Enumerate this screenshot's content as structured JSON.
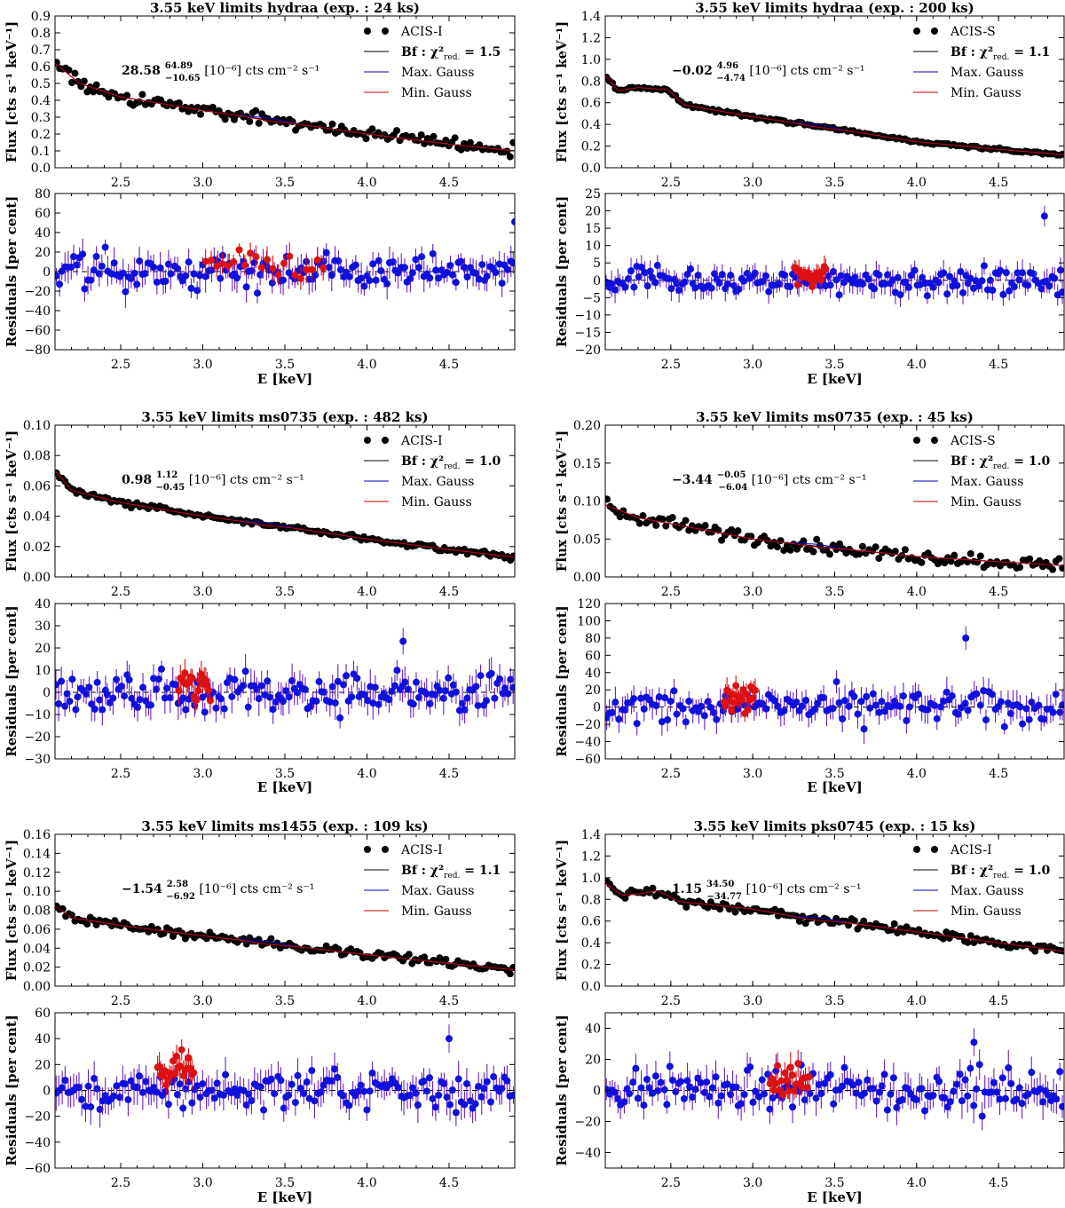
{
  "figure": {
    "flux_ylabel": "Flux [cts s⁻¹ keV⁻¹]",
    "resid_ylabel": "Residuals [per cent]",
    "xlabel": "E [keV]"
  },
  "legend": {
    "bf_prefix": "Bf : χ²",
    "bf_sub": "red.",
    "max_label": "Max. Gauss",
    "min_label": "Min. Gauss"
  },
  "colors": {
    "data": "#000000",
    "bestfit": "#000000",
    "max_gauss": "#0000cc",
    "min_gauss": "#cc0000",
    "resid_point": "#1010dd",
    "resid_err": "#6a1fc8",
    "line_point": "#dd1111"
  },
  "chart_data": [
    {
      "type": "scatter",
      "title": "3.55 keV limits hydraa (exp. : 24 ks)",
      "instrument": "ACIS-I",
      "chi2_red": "1.5",
      "flux_value": "28.58",
      "flux_upper": "64.89",
      "flux_lower": "−10.65",
      "flux_unit": "[10⁻⁶] cts cm⁻² s⁻¹",
      "xlim": [
        2.1,
        4.9
      ],
      "xticks": [
        "2.5",
        "3.0",
        "3.5",
        "4.0",
        "4.5"
      ],
      "flux_ylim": [
        0.0,
        0.9
      ],
      "flux_yticks": [
        "0.0",
        "0.1",
        "0.2",
        "0.3",
        "0.4",
        "0.5",
        "0.6",
        "0.7",
        "0.8",
        "0.9"
      ],
      "resid_ylim": [
        -80,
        80
      ],
      "resid_yticks": [
        "−80",
        "−60",
        "−40",
        "−20",
        "0",
        "20",
        "40",
        "60",
        "80"
      ],
      "model_points": [
        [
          2.1,
          0.62
        ],
        [
          2.25,
          0.5
        ],
        [
          2.5,
          0.42
        ],
        [
          3.0,
          0.34
        ],
        [
          3.5,
          0.27
        ],
        [
          4.0,
          0.2
        ],
        [
          4.5,
          0.14
        ],
        [
          4.9,
          0.1
        ]
      ],
      "flux_scatter": 0.035,
      "flux_err": 0.035,
      "n_points": 150,
      "resid_scatter": 14,
      "resid_err": 13,
      "line_range": [
        3.0,
        3.75
      ],
      "line_offset": 10,
      "outlier": [
        4.9,
        51
      ]
    },
    {
      "type": "scatter",
      "title": "3.55 keV limits hydraa (exp. : 200 ks)",
      "instrument": "ACIS-S",
      "chi2_red": "1.1",
      "flux_value": "−0.02",
      "flux_upper": "4.96",
      "flux_lower": "−4.74",
      "flux_unit": "[10⁻⁶] cts cm⁻² s⁻¹",
      "xlim": [
        2.1,
        4.9
      ],
      "xticks": [
        "2.5",
        "3.0",
        "3.5",
        "4.0",
        "4.5"
      ],
      "flux_ylim": [
        0.0,
        1.4
      ],
      "flux_yticks": [
        "0.0",
        "0.2",
        "0.4",
        "0.6",
        "0.8",
        "1.0",
        "1.2",
        "1.4"
      ],
      "resid_ylim": [
        -20,
        25
      ],
      "resid_yticks": [
        "−20",
        "−15",
        "−10",
        "−5",
        "0",
        "5",
        "10",
        "15",
        "20",
        "25"
      ],
      "model_points": [
        [
          2.1,
          0.85
        ],
        [
          2.18,
          0.71
        ],
        [
          2.3,
          0.74
        ],
        [
          2.48,
          0.72
        ],
        [
          2.58,
          0.58
        ],
        [
          3.0,
          0.47
        ],
        [
          3.5,
          0.36
        ],
        [
          4.0,
          0.24
        ],
        [
          4.5,
          0.17
        ],
        [
          4.9,
          0.12
        ]
      ],
      "flux_scatter": 0.012,
      "flux_err": 0.01,
      "n_points": 160,
      "resid_scatter": 3,
      "resid_err": 3,
      "line_range": [
        3.25,
        3.45
      ],
      "line_offset": 2,
      "outlier": [
        4.78,
        18.5
      ]
    },
    {
      "type": "scatter",
      "title": "3.55 keV limits ms0735 (exp. : 482 ks)",
      "instrument": "ACIS-I",
      "chi2_red": "1.0",
      "flux_value": "0.98",
      "flux_upper": "1.12",
      "flux_lower": "−0.45",
      "flux_unit": "[10⁻⁶] cts cm⁻² s⁻¹",
      "xlim": [
        2.1,
        4.9
      ],
      "xticks": [
        "2.5",
        "3.0",
        "3.5",
        "4.0",
        "4.5"
      ],
      "flux_ylim": [
        0.0,
        0.1
      ],
      "flux_yticks": [
        "0.00",
        "0.02",
        "0.04",
        "0.06",
        "0.08",
        "0.10"
      ],
      "resid_ylim": [
        -30,
        40
      ],
      "resid_yticks": [
        "−30",
        "−20",
        "−10",
        "0",
        "10",
        "20",
        "30",
        "40"
      ],
      "model_points": [
        [
          2.1,
          0.07
        ],
        [
          2.2,
          0.057
        ],
        [
          2.5,
          0.049
        ],
        [
          3.0,
          0.04
        ],
        [
          3.5,
          0.033
        ],
        [
          4.0,
          0.025
        ],
        [
          4.5,
          0.018
        ],
        [
          4.9,
          0.013
        ]
      ],
      "flux_scatter": 0.0015,
      "flux_err": 0.0015,
      "n_points": 160,
      "resid_scatter": 7,
      "resid_err": 6,
      "line_range": [
        2.85,
        3.05
      ],
      "line_offset": 4,
      "outlier": [
        4.22,
        23
      ]
    },
    {
      "type": "scatter",
      "title": "3.55 keV limits ms0735 (exp. : 45 ks)",
      "instrument": "ACIS-S",
      "chi2_red": "1.0",
      "flux_value": "−3.44",
      "flux_upper": "−0.05",
      "flux_lower": "−6.04",
      "flux_unit": "[10⁻⁶] cts cm⁻² s⁻¹",
      "xlim": [
        2.1,
        4.9
      ],
      "xticks": [
        "2.5",
        "3.0",
        "3.5",
        "4.0",
        "4.5"
      ],
      "flux_ylim": [
        0.0,
        0.2
      ],
      "flux_yticks": [
        "0.00",
        "0.05",
        "0.10",
        "0.15",
        "0.20"
      ],
      "resid_ylim": [
        -60,
        120
      ],
      "resid_yticks": [
        "−60",
        "−40",
        "−20",
        "0",
        "20",
        "40",
        "60",
        "80",
        "100",
        "120"
      ],
      "model_points": [
        [
          2.1,
          0.095
        ],
        [
          2.3,
          0.078
        ],
        [
          2.5,
          0.07
        ],
        [
          2.8,
          0.058
        ],
        [
          3.0,
          0.05
        ],
        [
          3.5,
          0.038
        ],
        [
          4.0,
          0.027
        ],
        [
          4.5,
          0.02
        ],
        [
          4.9,
          0.015
        ]
      ],
      "flux_scatter": 0.008,
      "flux_err": 0.008,
      "n_points": 140,
      "resid_scatter": 16,
      "resid_err": 14,
      "line_range": [
        2.82,
        3.02
      ],
      "line_offset": 10,
      "outlier": [
        4.3,
        80
      ]
    },
    {
      "type": "scatter",
      "title": "3.55 keV limits ms1455 (exp. : 109 ks)",
      "instrument": "ACIS-I",
      "chi2_red": "1.1",
      "flux_value": "−1.54",
      "flux_upper": "2.58",
      "flux_lower": "−6.92",
      "flux_unit": "[10⁻⁶] cts cm⁻² s⁻¹",
      "xlim": [
        2.1,
        4.9
      ],
      "xticks": [
        "2.5",
        "3.0",
        "3.5",
        "4.0",
        "4.5"
      ],
      "flux_ylim": [
        0.0,
        0.16
      ],
      "flux_yticks": [
        "0.00",
        "0.02",
        "0.04",
        "0.06",
        "0.08",
        "0.10",
        "0.12",
        "0.14",
        "0.16"
      ],
      "resid_ylim": [
        -60,
        60
      ],
      "resid_yticks": [
        "−60",
        "−40",
        "−20",
        "0",
        "20",
        "40",
        "60"
      ],
      "model_points": [
        [
          2.1,
          0.085
        ],
        [
          2.2,
          0.072
        ],
        [
          2.5,
          0.064
        ],
        [
          3.0,
          0.053
        ],
        [
          3.5,
          0.043
        ],
        [
          4.0,
          0.033
        ],
        [
          4.5,
          0.024
        ],
        [
          4.9,
          0.017
        ]
      ],
      "flux_scatter": 0.004,
      "flux_err": 0.004,
      "n_points": 150,
      "resid_scatter": 12,
      "resid_err": 11,
      "line_range": [
        2.72,
        2.95
      ],
      "line_offset": 15,
      "outlier": [
        4.5,
        40
      ]
    },
    {
      "type": "scatter",
      "title": "3.55 keV limits pks0745 (exp. : 15 ks)",
      "instrument": "ACIS-I",
      "chi2_red": "1.0",
      "flux_value": "1.15",
      "flux_upper": "34.50",
      "flux_lower": "−34.77",
      "flux_unit": "[10⁻⁶] cts cm⁻² s⁻¹",
      "xlim": [
        2.1,
        4.9
      ],
      "xticks": [
        "2.5",
        "3.0",
        "3.5",
        "4.0",
        "4.5"
      ],
      "flux_ylim": [
        0.0,
        1.4
      ],
      "flux_yticks": [
        "0.0",
        "0.2",
        "0.4",
        "0.6",
        "0.8",
        "1.0",
        "1.2",
        "1.4"
      ],
      "resid_ylim": [
        -50,
        50
      ],
      "resid_yticks": [
        "−40",
        "−20",
        "0",
        "20",
        "40"
      ],
      "model_points": [
        [
          2.1,
          0.95
        ],
        [
          2.2,
          0.84
        ],
        [
          2.3,
          0.85
        ],
        [
          2.42,
          0.88
        ],
        [
          2.55,
          0.78
        ],
        [
          3.0,
          0.71
        ],
        [
          3.3,
          0.63
        ],
        [
          3.5,
          0.6
        ],
        [
          4.0,
          0.5
        ],
        [
          4.5,
          0.4
        ],
        [
          4.9,
          0.32
        ]
      ],
      "flux_scatter": 0.04,
      "flux_err": 0.04,
      "n_points": 150,
      "resid_scatter": 11,
      "resid_err": 9,
      "line_range": [
        3.1,
        3.35
      ],
      "line_offset": 5,
      "outlier": [
        4.35,
        31
      ]
    }
  ]
}
